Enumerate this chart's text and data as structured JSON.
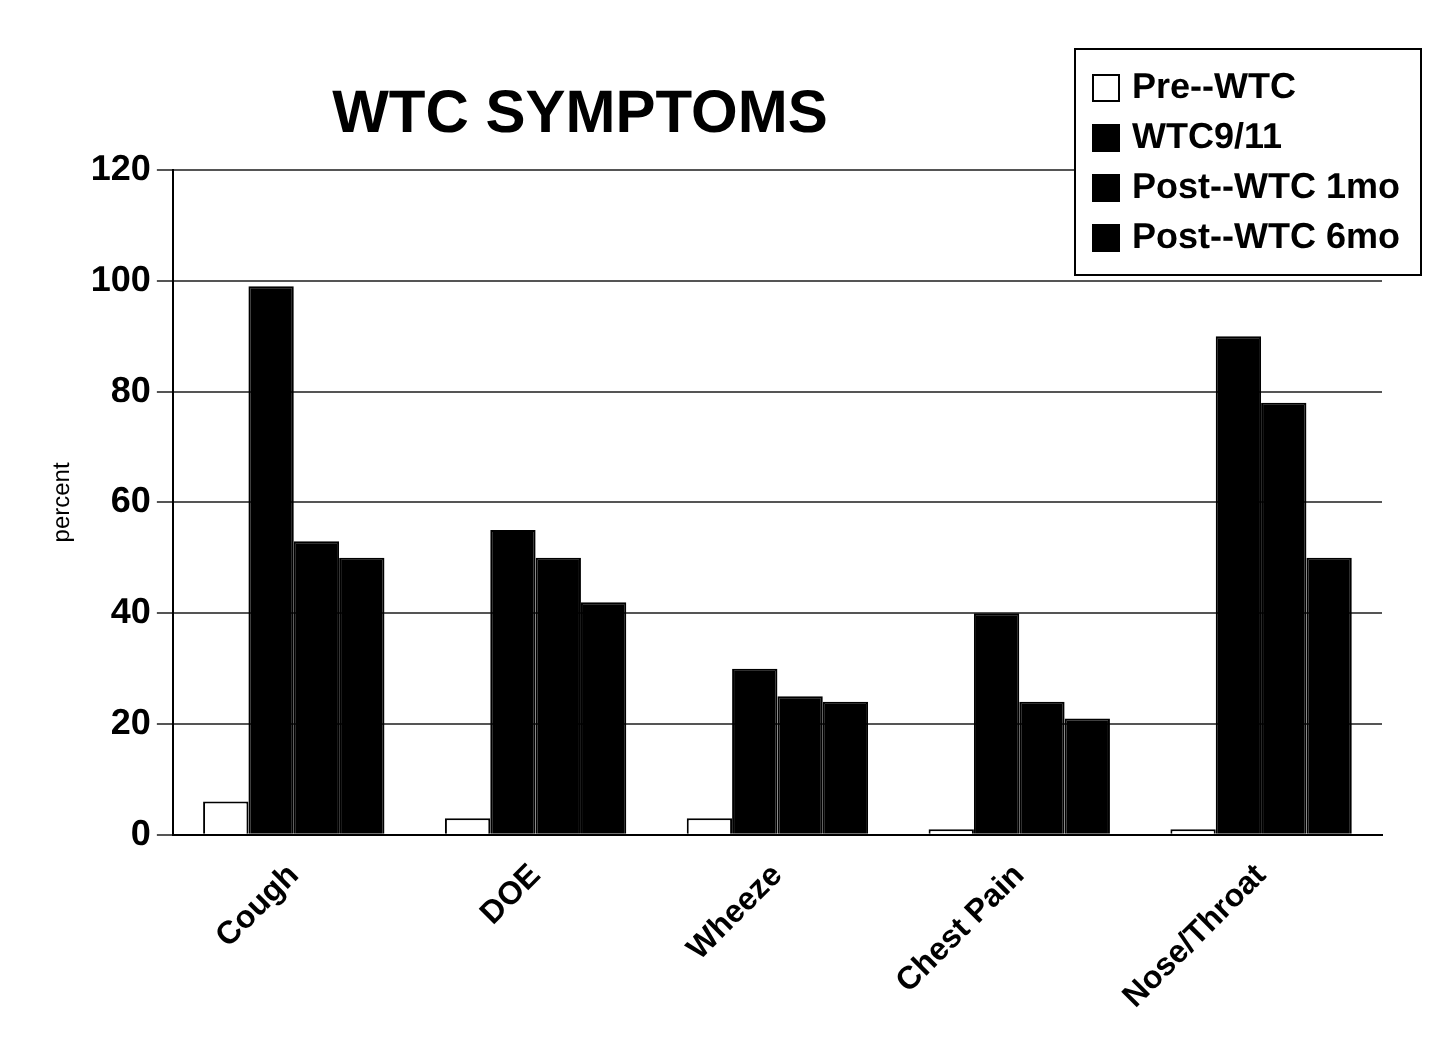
{
  "chart_data": {
    "type": "bar",
    "title": "WTC SYMPTOMS",
    "ylabel": "percent",
    "categories": [
      "Cough",
      "DOE",
      "Wheeze",
      "Chest Pain",
      "Nose/Throat"
    ],
    "series": [
      {
        "name": "Pre--WTC",
        "color": "#ffffff",
        "values": [
          6,
          3,
          3,
          1,
          1
        ]
      },
      {
        "name": "WTC9/11",
        "color": "#000000",
        "values": [
          99,
          55,
          30,
          40,
          90
        ]
      },
      {
        "name": "Post--WTC 1mo",
        "color": "#000000",
        "values": [
          53,
          50,
          25,
          24,
          78
        ]
      },
      {
        "name": "Post--WTC 6mo",
        "color": "#000000",
        "values": [
          50,
          42,
          24,
          21,
          50
        ]
      }
    ],
    "ylim": [
      0,
      120
    ],
    "yticks": [
      0,
      20,
      40,
      60,
      80,
      100,
      120
    ],
    "grid": "y",
    "legend": "top right"
  }
}
